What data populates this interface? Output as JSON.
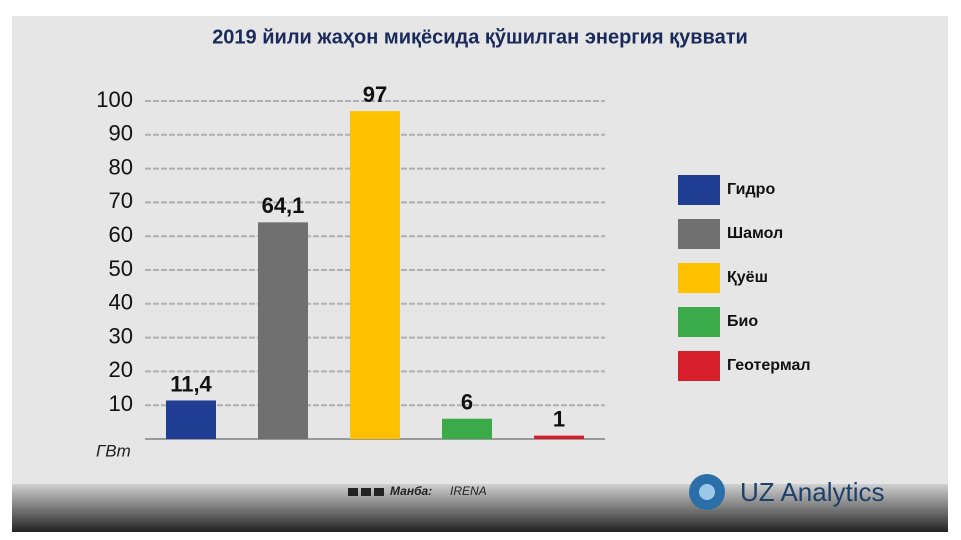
{
  "chart_data": {
    "type": "bar",
    "title": "2019 йили жаҳон миқёсида қўшилган энергия қуввати",
    "categories": [
      "Гидро",
      "Шамол",
      "Қуёш",
      "Био",
      "Геотермал"
    ],
    "values": [
      11.4,
      64.1,
      97,
      6,
      1
    ],
    "value_labels": [
      "11,4",
      "64,1",
      "97",
      "6",
      "1"
    ],
    "colors": [
      "#1f3e93",
      "#707070",
      "#ffc000",
      "#3aab48",
      "#d71f2b"
    ],
    "ylim": [
      0,
      100
    ],
    "yticks": [
      10,
      20,
      30,
      40,
      50,
      60,
      70,
      80,
      90,
      100
    ],
    "y_label": "ГВт",
    "grid": true,
    "legend": "right"
  },
  "source_label": "Манба:",
  "source": "IRENA",
  "brand": "UZ Analytics"
}
